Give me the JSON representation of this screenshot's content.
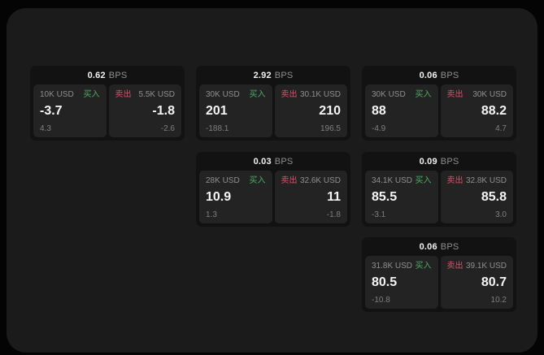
{
  "labels": {
    "bps_unit": "BPS",
    "buy": "买入",
    "sell": "卖出"
  },
  "colors": {
    "page_bg": "#040404",
    "surface_bg": "#1b1b1b",
    "card_bg": "#121212",
    "panel_bg": "#232323",
    "buy_green": "#4aae63",
    "sell_red": "#d0566b",
    "label_gray": "#8f8f8f",
    "value_white": "#f5f5f5"
  },
  "cards": [
    {
      "bps": "0.62",
      "buy": {
        "amount": "10K USD",
        "value": "-3.7",
        "secondary": "4.3"
      },
      "sell": {
        "amount": "5.5K USD",
        "value": "-1.8",
        "secondary": "-2.6"
      }
    },
    {
      "bps": "2.92",
      "buy": {
        "amount": "30K USD",
        "value": "201",
        "secondary": "-188.1"
      },
      "sell": {
        "amount": "30.1K USD",
        "value": "210",
        "secondary": "196.5"
      }
    },
    {
      "bps": "0.06",
      "buy": {
        "amount": "30K USD",
        "value": "88",
        "secondary": "-4.9"
      },
      "sell": {
        "amount": "30K USD",
        "value": "88.2",
        "secondary": "4.7"
      }
    },
    {
      "bps": "0.03",
      "buy": {
        "amount": "28K USD",
        "value": "10.9",
        "secondary": "1.3"
      },
      "sell": {
        "amount": "32.6K USD",
        "value": "11",
        "secondary": "-1.8"
      }
    },
    {
      "bps": "0.09",
      "buy": {
        "amount": "34.1K USD",
        "value": "85.5",
        "secondary": "-3.1"
      },
      "sell": {
        "amount": "32.8K USD",
        "value": "85.8",
        "secondary": "3.0"
      }
    },
    {
      "bps": "0.06",
      "buy": {
        "amount": "31.8K USD",
        "value": "80.5",
        "secondary": "-10.8"
      },
      "sell": {
        "amount": "39.1K USD",
        "value": "80.7",
        "secondary": "10.2"
      }
    }
  ]
}
